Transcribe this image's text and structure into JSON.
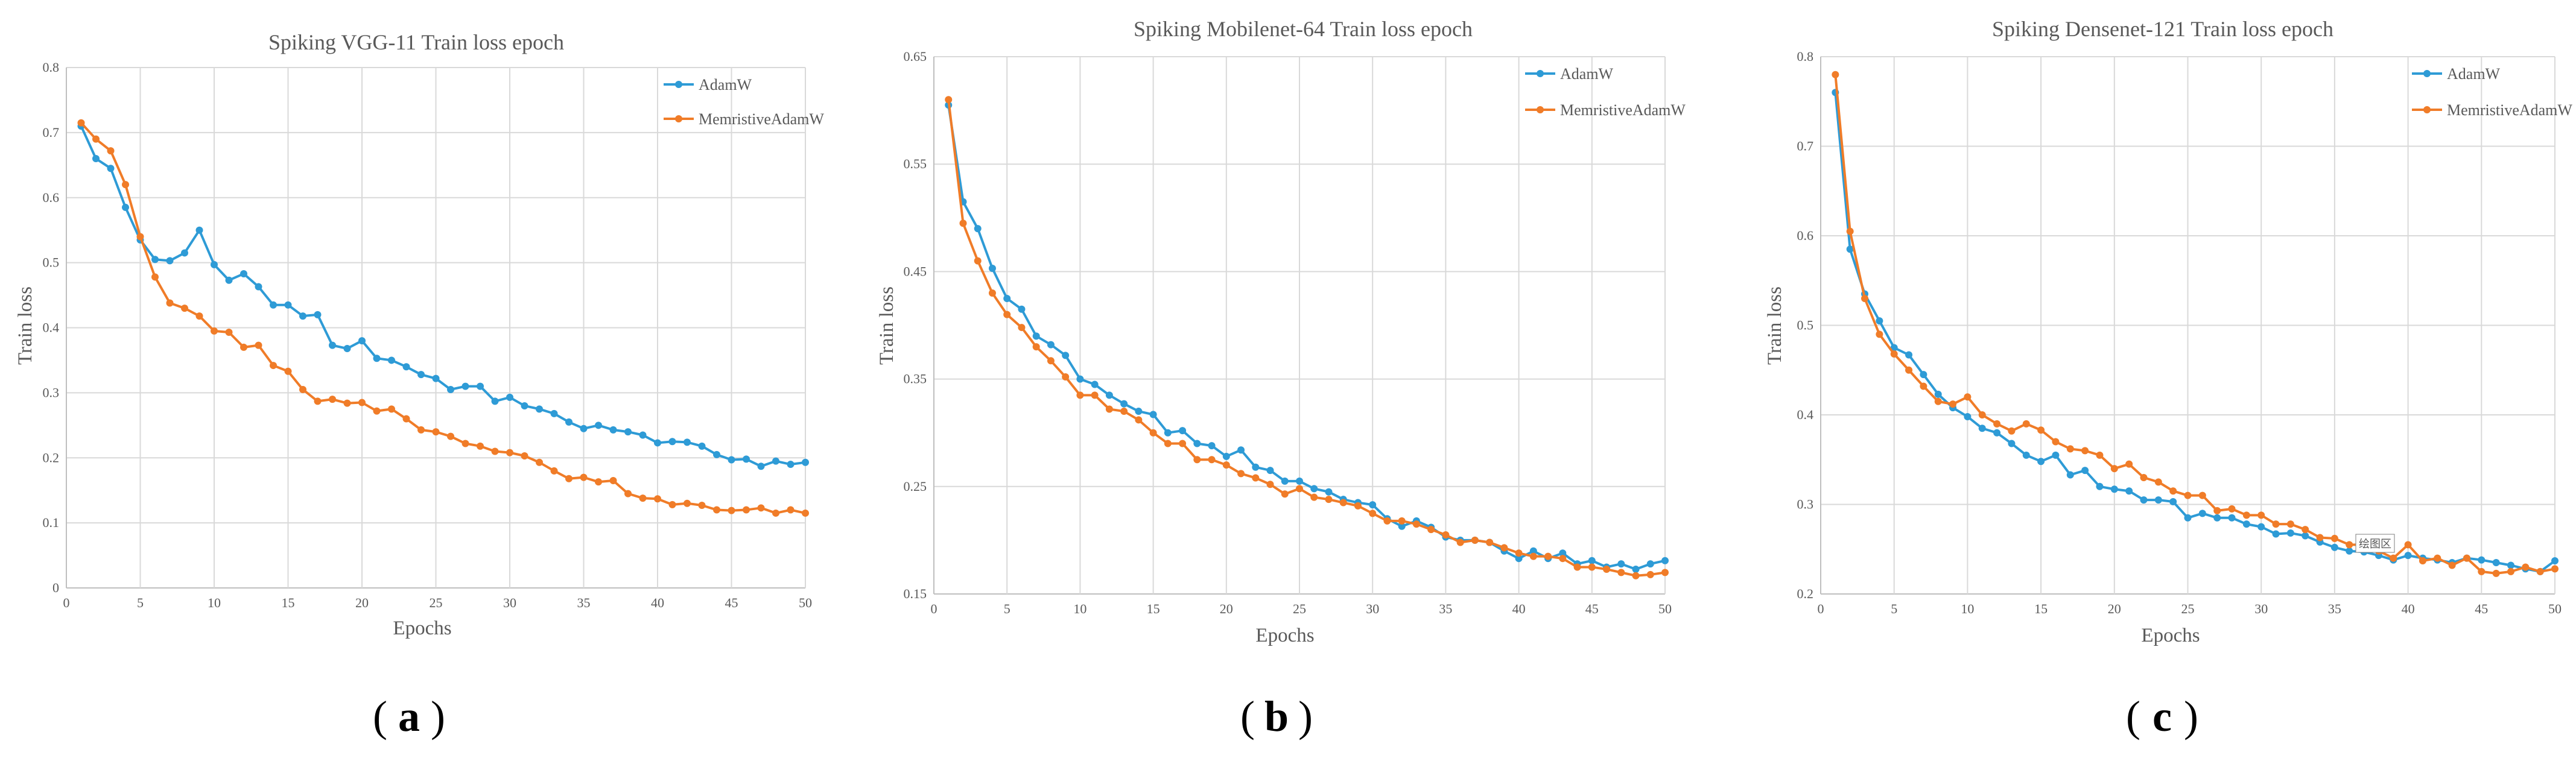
{
  "colors": {
    "adamw": "#2e9bd6",
    "memristive": "#f07c28"
  },
  "chart_data": [
    {
      "type": "line",
      "title": "Spiking VGG-11 Train loss epoch",
      "xlabel": "Epochs",
      "ylabel": "Train loss",
      "xlim": [
        0,
        50
      ],
      "ylim": [
        0,
        0.8
      ],
      "xticks": [
        "0",
        "5",
        "10",
        "15",
        "20",
        "25",
        "30",
        "35",
        "40",
        "45",
        "50"
      ],
      "yticks": [
        "0",
        "0.1",
        "0.2",
        "0.3",
        "0.4",
        "0.5",
        "0.6",
        "0.7",
        "0.8"
      ],
      "x": [
        1,
        2,
        3,
        4,
        5,
        6,
        7,
        8,
        9,
        10,
        11,
        12,
        13,
        14,
        15,
        16,
        17,
        18,
        19,
        20,
        21,
        22,
        23,
        24,
        25,
        26,
        27,
        28,
        29,
        30,
        31,
        32,
        33,
        34,
        35,
        36,
        37,
        38,
        39,
        40,
        41,
        42,
        43,
        44,
        45,
        46,
        47,
        48,
        49,
        50
      ],
      "series": [
        {
          "name": "AdamW",
          "values": [
            0.71,
            0.66,
            0.645,
            0.585,
            0.535,
            0.505,
            0.503,
            0.515,
            0.55,
            0.497,
            0.473,
            0.483,
            0.463,
            0.435,
            0.435,
            0.418,
            0.42,
            0.373,
            0.368,
            0.38,
            0.353,
            0.35,
            0.34,
            0.328,
            0.322,
            0.305,
            0.31,
            0.31,
            0.287,
            0.293,
            0.28,
            0.275,
            0.268,
            0.255,
            0.245,
            0.25,
            0.243,
            0.24,
            0.235,
            0.223,
            0.225,
            0.224,
            0.218,
            0.205,
            0.197,
            0.198,
            0.187,
            0.195,
            0.19,
            0.193
          ]
        },
        {
          "name": "MemristiveAdamW",
          "values": [
            0.715,
            0.69,
            0.672,
            0.62,
            0.54,
            0.478,
            0.438,
            0.43,
            0.418,
            0.395,
            0.393,
            0.37,
            0.373,
            0.342,
            0.333,
            0.305,
            0.287,
            0.29,
            0.284,
            0.285,
            0.272,
            0.275,
            0.26,
            0.243,
            0.24,
            0.233,
            0.222,
            0.218,
            0.21,
            0.208,
            0.203,
            0.193,
            0.18,
            0.168,
            0.17,
            0.163,
            0.165,
            0.145,
            0.138,
            0.137,
            0.128,
            0.13,
            0.127,
            0.12,
            0.119,
            0.12,
            0.123,
            0.115,
            0.12,
            0.115
          ]
        }
      ],
      "legend": "top-right"
    },
    {
      "type": "line",
      "title": "Spiking Mobilenet-64 Train loss epoch",
      "xlabel": "Epochs",
      "ylabel": "Train loss",
      "xlim": [
        0,
        50
      ],
      "ylim": [
        0.15,
        0.65
      ],
      "xticks": [
        "0",
        "5",
        "10",
        "15",
        "20",
        "25",
        "30",
        "35",
        "40",
        "45",
        "50"
      ],
      "yticks": [
        "0.15",
        "0.25",
        "0.35",
        "0.45",
        "0.55",
        "0.65"
      ],
      "x": [
        1,
        2,
        3,
        4,
        5,
        6,
        7,
        8,
        9,
        10,
        11,
        12,
        13,
        14,
        15,
        16,
        17,
        18,
        19,
        20,
        21,
        22,
        23,
        24,
        25,
        26,
        27,
        28,
        29,
        30,
        31,
        32,
        33,
        34,
        35,
        36,
        37,
        38,
        39,
        40,
        41,
        42,
        43,
        44,
        45,
        46,
        47,
        48,
        49,
        50
      ],
      "series": [
        {
          "name": "AdamW",
          "values": [
            0.605,
            0.515,
            0.49,
            0.453,
            0.425,
            0.415,
            0.39,
            0.382,
            0.372,
            0.35,
            0.345,
            0.335,
            0.327,
            0.32,
            0.317,
            0.3,
            0.302,
            0.29,
            0.288,
            0.278,
            0.284,
            0.268,
            0.265,
            0.255,
            0.255,
            0.248,
            0.245,
            0.238,
            0.235,
            0.233,
            0.22,
            0.213,
            0.218,
            0.212,
            0.203,
            0.2,
            0.2,
            0.198,
            0.19,
            0.183,
            0.19,
            0.183,
            0.188,
            0.178,
            0.181,
            0.175,
            0.178,
            0.173,
            0.178,
            0.181
          ]
        },
        {
          "name": "MemristiveAdamW",
          "values": [
            0.61,
            0.495,
            0.46,
            0.43,
            0.41,
            0.398,
            0.38,
            0.367,
            0.352,
            0.335,
            0.335,
            0.322,
            0.32,
            0.312,
            0.3,
            0.29,
            0.29,
            0.275,
            0.275,
            0.27,
            0.262,
            0.258,
            0.252,
            0.243,
            0.248,
            0.24,
            0.238,
            0.235,
            0.232,
            0.225,
            0.218,
            0.218,
            0.215,
            0.21,
            0.205,
            0.198,
            0.2,
            0.198,
            0.193,
            0.188,
            0.185,
            0.185,
            0.183,
            0.175,
            0.175,
            0.173,
            0.17,
            0.167,
            0.168,
            0.17
          ]
        }
      ],
      "legend": "top-right"
    },
    {
      "type": "line",
      "title": "Spiking Densenet-121 Train loss epoch",
      "xlabel": "Epochs",
      "ylabel": "Train loss",
      "xlim": [
        0,
        50
      ],
      "ylim": [
        0.2,
        0.8
      ],
      "xticks": [
        "0",
        "5",
        "10",
        "15",
        "20",
        "25",
        "30",
        "35",
        "40",
        "45",
        "50"
      ],
      "yticks": [
        "0.2",
        "0.3",
        "0.4",
        "0.5",
        "0.6",
        "0.7",
        "0.8"
      ],
      "x": [
        1,
        2,
        3,
        4,
        5,
        6,
        7,
        8,
        9,
        10,
        11,
        12,
        13,
        14,
        15,
        16,
        17,
        18,
        19,
        20,
        21,
        22,
        23,
        24,
        25,
        26,
        27,
        28,
        29,
        30,
        31,
        32,
        33,
        34,
        35,
        36,
        37,
        38,
        39,
        40,
        41,
        42,
        43,
        44,
        45,
        46,
        47,
        48,
        49,
        50
      ],
      "series": [
        {
          "name": "AdamW",
          "values": [
            0.76,
            0.585,
            0.535,
            0.505,
            0.475,
            0.467,
            0.445,
            0.423,
            0.408,
            0.398,
            0.385,
            0.38,
            0.368,
            0.355,
            0.348,
            0.355,
            0.333,
            0.338,
            0.32,
            0.317,
            0.315,
            0.305,
            0.305,
            0.303,
            0.285,
            0.29,
            0.285,
            0.285,
            0.278,
            0.275,
            0.267,
            0.268,
            0.265,
            0.258,
            0.252,
            0.248,
            0.247,
            0.243,
            0.238,
            0.243,
            0.24,
            0.238,
            0.235,
            0.24,
            0.238,
            0.235,
            0.232,
            0.228,
            0.225,
            0.237
          ]
        },
        {
          "name": "MemristiveAdamW",
          "values": [
            0.78,
            0.605,
            0.53,
            0.49,
            0.468,
            0.45,
            0.432,
            0.415,
            0.412,
            0.42,
            0.4,
            0.39,
            0.382,
            0.39,
            0.383,
            0.37,
            0.362,
            0.36,
            0.355,
            0.34,
            0.345,
            0.33,
            0.325,
            0.315,
            0.31,
            0.31,
            0.293,
            0.295,
            0.288,
            0.288,
            0.278,
            0.278,
            0.272,
            0.263,
            0.262,
            0.255,
            0.255,
            0.248,
            0.24,
            0.255,
            0.237,
            0.24,
            0.232,
            0.24,
            0.225,
            0.223,
            0.225,
            0.23,
            0.225,
            0.228
          ]
        }
      ],
      "legend": "top-right",
      "annotation": "绘图区"
    }
  ],
  "captions": [
    "a",
    "b",
    "c"
  ]
}
